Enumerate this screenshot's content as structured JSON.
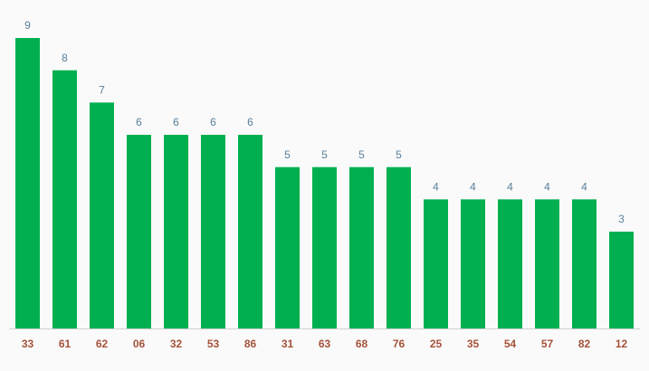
{
  "chart_data": {
    "type": "bar",
    "categories": [
      "33",
      "61",
      "62",
      "06",
      "32",
      "53",
      "86",
      "31",
      "63",
      "68",
      "76",
      "25",
      "35",
      "54",
      "57",
      "82",
      "12"
    ],
    "values": [
      9,
      8,
      7,
      6,
      6,
      6,
      6,
      5,
      5,
      5,
      5,
      4,
      4,
      4,
      4,
      4,
      3
    ],
    "color": "#00b050"
  }
}
